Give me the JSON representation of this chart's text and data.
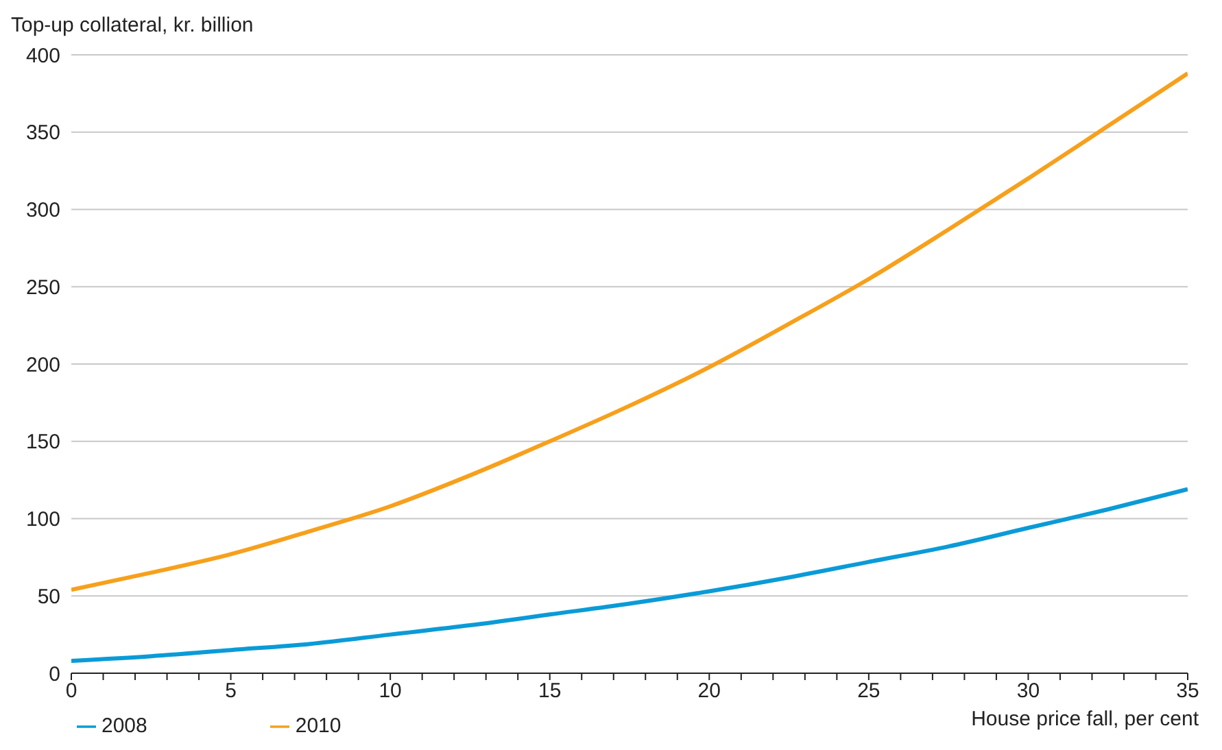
{
  "chart_data": {
    "type": "line",
    "xlabel": "House price fall, per cent",
    "ylabel": "Top-up collateral, kr. billion",
    "x": [
      0,
      2.5,
      5,
      7.5,
      10,
      12.5,
      15,
      17.5,
      20,
      22.5,
      25,
      27.5,
      30,
      32.5,
      35
    ],
    "series": [
      {
        "name": "2008",
        "color": "#0a9bd7",
        "values": [
          8,
          11,
          15,
          19,
          25,
          31,
          38,
          45,
          53,
          62,
          72,
          82,
          94,
          106,
          119
        ]
      },
      {
        "name": "2010",
        "color": "#f7a01c",
        "values": [
          54,
          65,
          77,
          92,
          108,
          128,
          150,
          173,
          198,
          226,
          255,
          287,
          320,
          354,
          388
        ]
      }
    ],
    "xlim": [
      0,
      35
    ],
    "xticks": [
      0,
      {
        "value": 1,
        "label": null
      },
      {
        "value": 2,
        "label": null
      },
      {
        "value": 3,
        "label": null
      },
      {
        "value": 4,
        "label": null
      },
      5,
      {
        "value": 6,
        "label": null
      },
      {
        "value": 7,
        "label": null
      },
      {
        "value": 8,
        "label": null
      },
      {
        "value": 9,
        "label": null
      },
      10,
      {
        "value": 11,
        "label": null
      },
      {
        "value": 12,
        "label": null
      },
      {
        "value": 13,
        "label": null
      },
      {
        "value": 14,
        "label": null
      },
      15,
      {
        "value": 16,
        "label": null
      },
      {
        "value": 17,
        "label": null
      },
      {
        "value": 18,
        "label": null
      },
      {
        "value": 19,
        "label": null
      },
      20,
      {
        "value": 21,
        "label": null
      },
      {
        "value": 22,
        "label": null
      },
      {
        "value": 23,
        "label": null
      },
      {
        "value": 24,
        "label": null
      },
      25,
      {
        "value": 26,
        "label": null
      },
      {
        "value": 27,
        "label": null
      },
      {
        "value": 28,
        "label": null
      },
      {
        "value": 29,
        "label": null
      },
      30,
      {
        "value": 31,
        "label": null
      },
      {
        "value": 32,
        "label": null
      },
      {
        "value": 33,
        "label": null
      },
      {
        "value": 34,
        "label": null
      },
      35
    ],
    "ylim": [
      0,
      400
    ],
    "yticks": [
      0,
      50,
      100,
      150,
      200,
      250,
      300,
      350,
      400
    ],
    "grid": "y",
    "legend": "bottom left",
    "marker": "none",
    "line_style": "solid"
  }
}
